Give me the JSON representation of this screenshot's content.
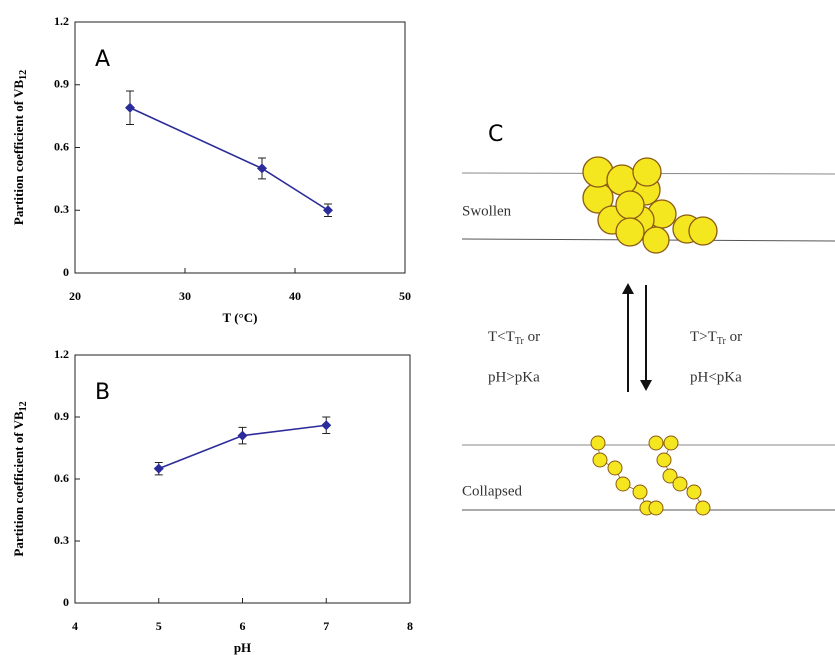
{
  "chart_data": [
    {
      "type": "line",
      "panel": "A",
      "xlabel": "T (°C)",
      "ylabel": "Partition coefficient of VB",
      "ylabel_sub": "12",
      "x": [
        25,
        37,
        43
      ],
      "values": [
        0.79,
        0.5,
        0.3
      ],
      "errors": [
        0.08,
        0.05,
        0.03
      ],
      "color": "#2b2b9a",
      "xlim": [
        20,
        50
      ],
      "xticks": [
        20,
        30,
        40,
        50
      ],
      "ylim": [
        0,
        1.2
      ],
      "yticks": [
        0,
        0.3,
        0.6,
        0.9,
        1.2
      ]
    },
    {
      "type": "line",
      "panel": "B",
      "xlabel": "pH",
      "ylabel": "Partition coefficient of VB",
      "ylabel_sub": "12",
      "x": [
        5,
        6,
        7
      ],
      "values": [
        0.65,
        0.81,
        0.86
      ],
      "errors": [
        0.03,
        0.04,
        0.04
      ],
      "color": "#2b2b9a",
      "xlim": [
        4,
        8
      ],
      "xticks": [
        4,
        5,
        6,
        7,
        8
      ],
      "ylim": [
        0,
        1.2
      ],
      "yticks": [
        0,
        0.3,
        0.6,
        0.9,
        1.2
      ]
    }
  ],
  "diagram": {
    "panel": "C",
    "swollen": "Swollen",
    "collapsed": "Collapsed",
    "left_line1": "T<T",
    "left_line1_sub": "Tr",
    "left_line1_end": " or",
    "left_line2": "pH>pKa",
    "right_line1": "T>T",
    "right_line1_sub": "Tr",
    "right_line1_end": " or",
    "right_line2": "pH<pKa"
  }
}
